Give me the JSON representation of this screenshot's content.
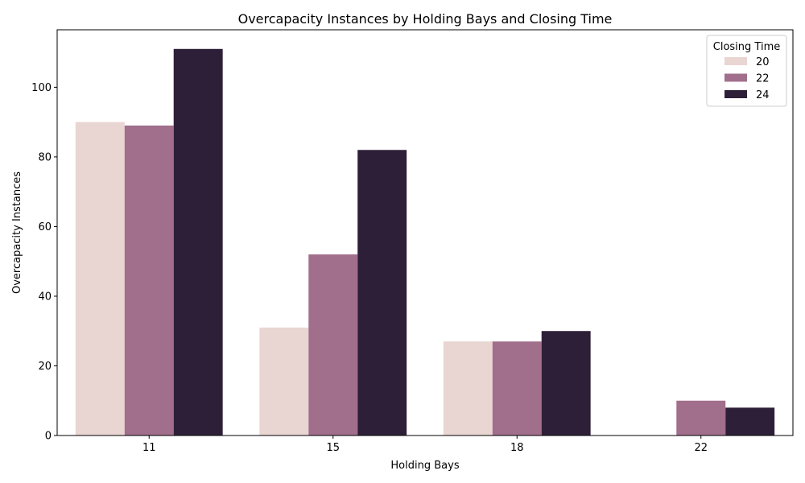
{
  "chart_data": {
    "type": "bar",
    "title": "Overcapacity Instances by Holding Bays and Closing Time",
    "xlabel": "Holding Bays",
    "ylabel": "Overcapacity Instances",
    "categories": [
      "11",
      "15",
      "18",
      "22"
    ],
    "ylim": [
      0,
      116.5
    ],
    "yticks": [
      0,
      20,
      40,
      60,
      80,
      100
    ],
    "grid": false,
    "legend": {
      "title": "Closing Time",
      "placement": "top-right"
    },
    "series": [
      {
        "name": "20",
        "color": "#e9d5d1",
        "values": [
          90,
          31,
          27,
          0
        ]
      },
      {
        "name": "22",
        "color": "#a16e8c",
        "values": [
          89,
          52,
          27,
          10
        ]
      },
      {
        "name": "24",
        "color": "#2e1f38",
        "values": [
          111,
          82,
          30,
          8
        ]
      }
    ]
  }
}
